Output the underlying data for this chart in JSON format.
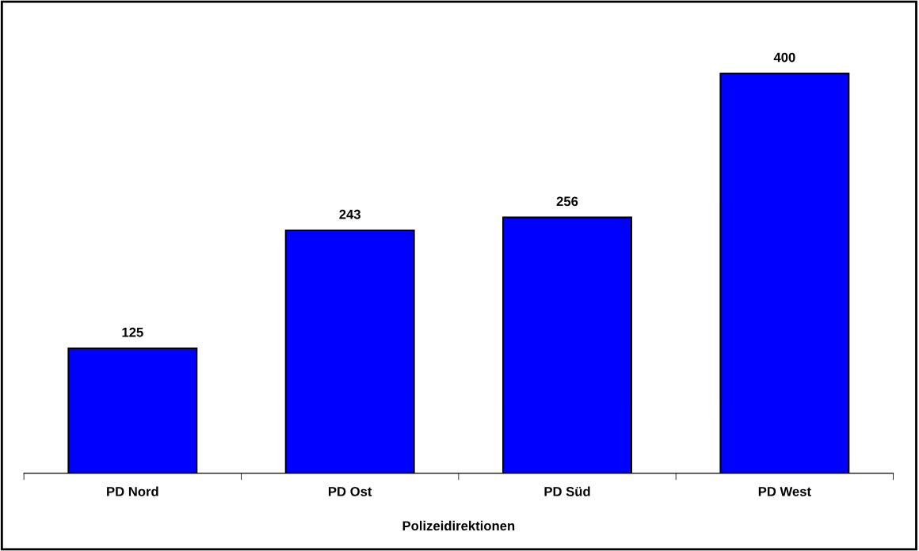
{
  "chart_data": {
    "type": "bar",
    "xlabel": "Polizeidirektionen",
    "categories": [
      "PD Nord",
      "PD Ost",
      "PD Süd",
      "PD West"
    ],
    "values": [
      125,
      243,
      256,
      400
    ],
    "color": "#0000ff",
    "data_labels": true
  }
}
